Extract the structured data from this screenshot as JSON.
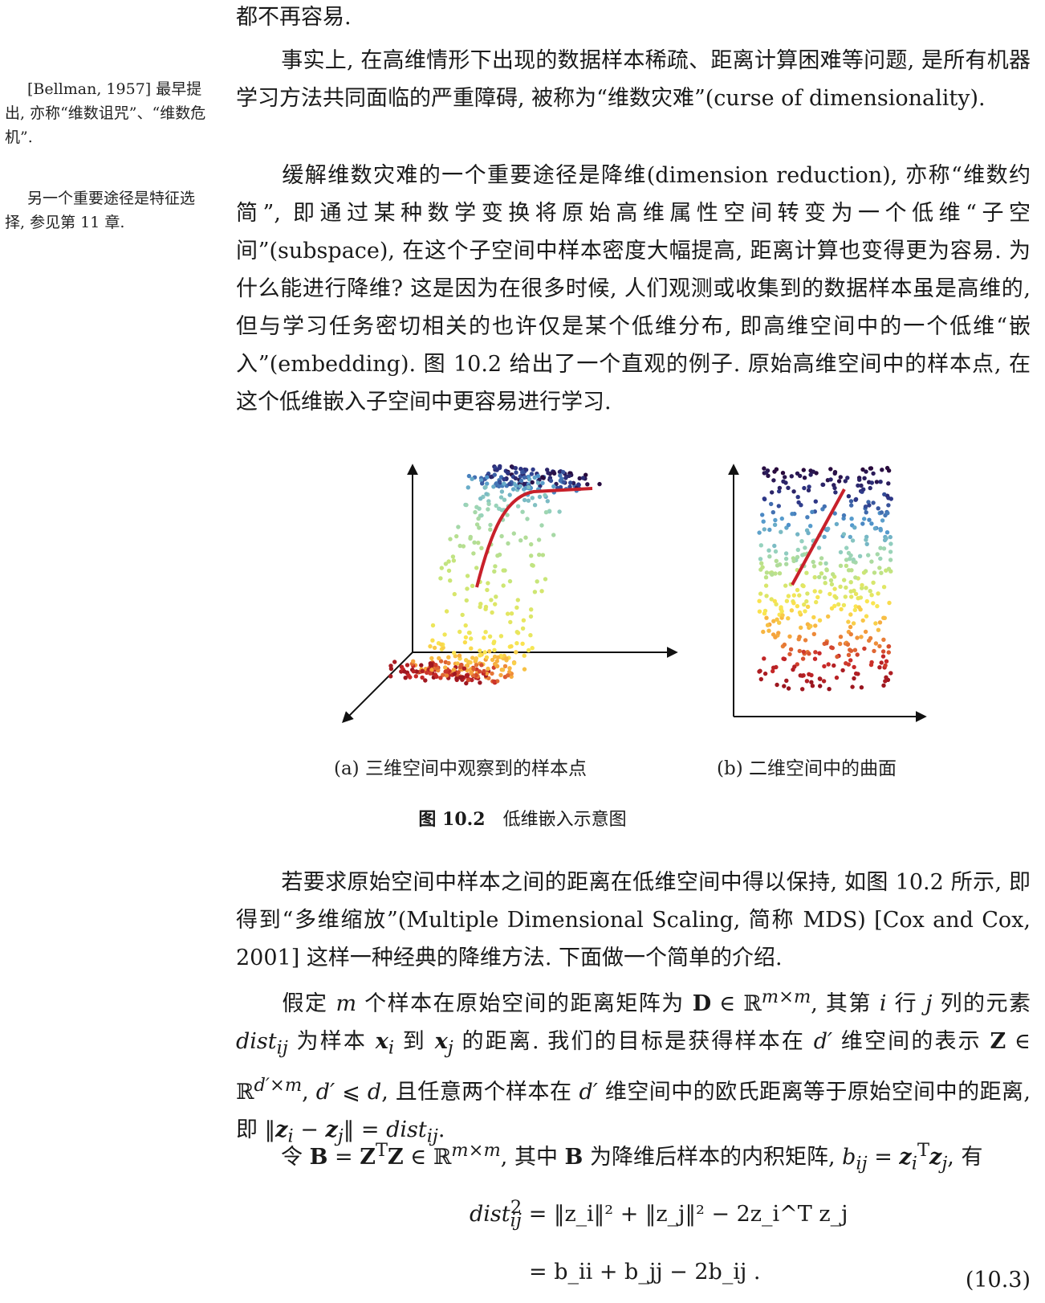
{
  "top_line": "都不再容易.",
  "paragraphs": [
    "事实上, 在高维情形下出现的数据样本稀疏、距离计算困难等问题, 是所有机器学习方法共同面临的严重障碍, 被称为“维数灾难”(curse of dimensionality).",
    "缓解维数灾难的一个重要途径是降维(dimension reduction), 亦称“维数约简”, 即通过某种数学变换将原始高维属性空间转变为一个低维“子空间”(subspace), 在这个子空间中样本密度大幅提高, 距离计算也变得更为容易. 为什么能进行降维? 这是因为在很多时候, 人们观测或收集到的数据样本虽是高维的, 但与学习任务密切相关的也许仅是某个低维分布, 即高维空间中的一个低维“嵌入”(embedding). 图 10.2 给出了一个直观的例子. 原始高维空间中的样本点, 在这个低维嵌入子空间中更容易进行学习.",
    "若要求原始空间中样本之间的距离在低维空间中得以保持, 如图 10.2 所示, 即得到“多维缩放”(Multiple Dimensional Scaling, 简称 MDS) [Cox and Cox, 2001] 这样一种经典的降维方法. 下面做一个简单的介绍."
  ],
  "math_para1": {
    "t1": "假定 ",
    "m": "m",
    "t2": " 个样本在原始空间的距离矩阵为 ",
    "D": "D",
    "t3": " ∈ ℝ",
    "sup1": "m×m",
    "t4": ", 其第 ",
    "i": "i",
    "t5": " 行 ",
    "j": "j",
    "t6": " 列的元素 ",
    "dist": "dist",
    "sub_ij": "ij",
    "t7": " 为样本 ",
    "xi": "x",
    "t8": " 到 ",
    "xj": "x",
    "t9": " 的距离. 我们的目标是获得样本在 ",
    "dp": "d′",
    "t10": " 维空间的表示 ",
    "Z": "Z",
    "t11": " ∈ ℝ",
    "sup2": "d′×m",
    "t12": ", ",
    "dp2": "d′",
    "t13": " ⩽ ",
    "d": "d",
    "t14": ", 且任意两个样本在 ",
    "dp3": "d′",
    "t15": " 维空间中的欧氏距离等于原始空间中的距离, 即 ‖",
    "zi": "z",
    "t16": " − ",
    "zj": "z",
    "t17": "‖ = ",
    "dist2": "dist",
    "t18": "."
  },
  "math_para2": {
    "t1": "令 ",
    "B": "B",
    "t2": " = ",
    "Z1": "Z",
    "T": "T",
    "Z2": "Z",
    "t3": " ∈ ℝ",
    "sup": "m×m",
    "t4": ", 其中 ",
    "B2": "B",
    "t5": " 为降维后样本的内积矩阵, ",
    "b": "b",
    "t6": " = ",
    "z1": "z",
    "z2": "z",
    "t7": ", 有"
  },
  "sidenotes": [
    "[Bellman, 1957] 最早提出, 亦称“维数诅咒”、“维数危机”.",
    "另一个重要途径是特征选择, 参见第 11 章."
  ],
  "captions": {
    "a": "(a) 三维空间中观察到的样本点",
    "b": "(b) 二维空间中的曲面"
  },
  "figure_label": "图 10.2",
  "figure_title": "低维嵌入示意图",
  "equation": {
    "line1_lhs": "dist",
    "line1_rhs": "= ‖z_i‖² + ‖z_j‖² − 2z_i^T z_j",
    "line2_rhs": "= b_ii + b_jj − 2b_ij .",
    "number": "(10.3)"
  }
}
